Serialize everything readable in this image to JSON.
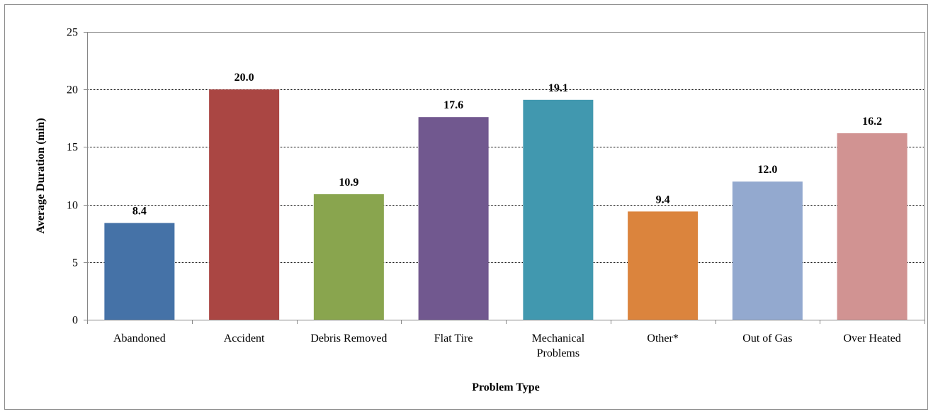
{
  "chart_data": {
    "type": "bar",
    "categories": [
      [
        "Abandoned"
      ],
      [
        "Accident"
      ],
      [
        "Debris Removed"
      ],
      [
        "Flat Tire"
      ],
      [
        "Mechanical",
        "Problems"
      ],
      [
        "Other*"
      ],
      [
        "Out of Gas"
      ],
      [
        "Over Heated"
      ]
    ],
    "values": [
      8.4,
      20.0,
      10.9,
      17.6,
      19.1,
      9.4,
      12.0,
      16.2
    ],
    "data_labels": [
      "8.4",
      "20.0",
      "10.9",
      "17.6",
      "19.1",
      "9.4",
      "12.0",
      "16.2"
    ],
    "colors": [
      "#4572A7",
      "#AA4643",
      "#89A54E",
      "#71588F",
      "#4198AF",
      "#DB843D",
      "#93A9CF",
      "#D19392"
    ],
    "xlabel": "Problem Type",
    "ylabel": "Average Duration (min)",
    "ylim": [
      0,
      25
    ],
    "yticks": [
      0,
      5,
      10,
      15,
      20,
      25
    ],
    "grid": true,
    "legend": "none"
  }
}
